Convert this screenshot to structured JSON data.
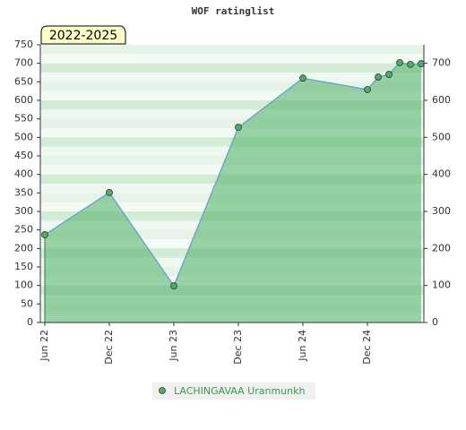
{
  "chart_data": {
    "type": "area",
    "title": "WOF ratinglist",
    "annotation": "2022-2025",
    "x": [
      "2022-06",
      "2022-12",
      "2023-06",
      "2023-12",
      "2024-06",
      "2024-12",
      "2025-01",
      "2025-02",
      "2025-03",
      "2025-04",
      "2025-05"
    ],
    "series": [
      {
        "name": "LACHINGAVAA Uranmunkh",
        "color": "#5b9bd5",
        "fill": "#4caf64",
        "values": [
          237,
          351,
          99,
          527,
          660,
          629,
          663,
          670,
          702,
          697,
          699
        ]
      }
    ],
    "xlim": [
      "2022-06",
      "2025-05"
    ],
    "xticks": [
      {
        "value": "2022-06",
        "label": "Jun 22"
      },
      {
        "value": "2022-12",
        "label": "Dec 22"
      },
      {
        "value": "2023-06",
        "label": "Jun 23"
      },
      {
        "value": "2023-12",
        "label": "Dec 23"
      },
      {
        "value": "2024-06",
        "label": "Jun 24"
      },
      {
        "value": "2024-12",
        "label": "Dec 24"
      }
    ],
    "ylim": [
      0,
      750
    ],
    "yticks": [
      0,
      50,
      100,
      150,
      200,
      250,
      300,
      350,
      400,
      450,
      500,
      550,
      600,
      650,
      700,
      750
    ],
    "y2lim": [
      0,
      750
    ],
    "y2ticks": [
      0,
      100,
      200,
      300,
      400,
      500,
      600,
      700
    ]
  }
}
